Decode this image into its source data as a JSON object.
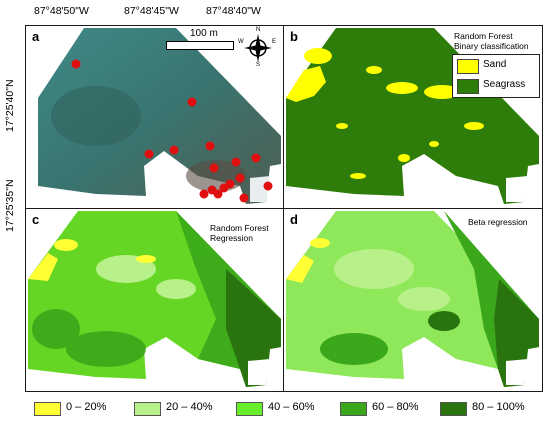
{
  "axes": {
    "lon_ticks": [
      "87°48'50\"W",
      "87°48'45\"W",
      "87°48'40\"W"
    ],
    "lat_ticks": [
      "17°25'40\"N",
      "17°25'35\"N"
    ]
  },
  "panels": {
    "a": {
      "label": "a",
      "scale_label": "100 m",
      "compass": {
        "n": "N",
        "s": "S",
        "e": "E",
        "w": "W"
      }
    },
    "b": {
      "label": "b",
      "title_line1": "Random Forest",
      "title_line2": "Binary classification",
      "legend": [
        {
          "label": "Sand",
          "color": "#ffff00"
        },
        {
          "label": "Seagrass",
          "color": "#2e7d0a"
        }
      ]
    },
    "c": {
      "label": "c",
      "title_line1": "Random Forest",
      "title_line2": "Regression"
    },
    "d": {
      "label": "d",
      "title_line1": "Beta regression"
    }
  },
  "cover_legend": [
    {
      "label": "0 – 20%",
      "color": "#ffff33"
    },
    {
      "label": "20 – 40%",
      "color": "#b8f08a"
    },
    {
      "label": "40 – 60%",
      "color": "#66ee2a"
    },
    {
      "label": "60 – 80%",
      "color": "#3aa81a"
    },
    {
      "label": "80 – 100%",
      "color": "#2a7410"
    }
  ],
  "colors": {
    "water_teal": "#3f7f7c",
    "sand": "#ffff00",
    "seagrass_dark": "#2e7d0a",
    "sample_point": "#e01010"
  }
}
